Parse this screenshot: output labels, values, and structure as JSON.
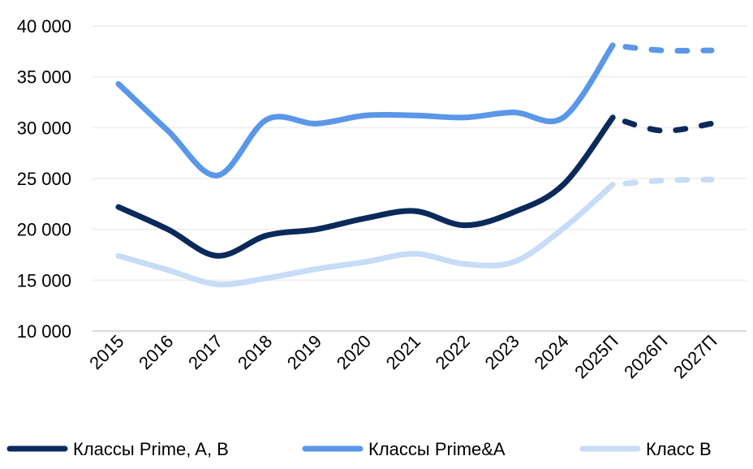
{
  "chart_data": {
    "type": "line",
    "title": "",
    "xlabel": "",
    "ylabel": "",
    "categories": [
      "2015",
      "2016",
      "2017",
      "2018",
      "2019",
      "2020",
      "2021",
      "2022",
      "2023",
      "2024",
      "2025П",
      "2026П",
      "2027П"
    ],
    "ylim": [
      10000,
      40000
    ],
    "yticks": [
      10000,
      15000,
      20000,
      25000,
      30000,
      35000,
      40000
    ],
    "ytick_labels": [
      "10 000",
      "15 000",
      "20 000",
      "25 000",
      "30 000",
      "35 000",
      "40 000"
    ],
    "grid": true,
    "legend_position": "bottom",
    "forecast_from_index": 10,
    "forecast_style": "dashed",
    "series": [
      {
        "name": "Классы Prime, A, B",
        "color": "#0b2a5b",
        "values": [
          22200,
          20000,
          17400,
          19400,
          20000,
          21100,
          21800,
          20400,
          21700,
          24400,
          31000,
          29700,
          30400
        ]
      },
      {
        "name": "Классы Prime&A",
        "color": "#5b97e8",
        "values": [
          34300,
          29700,
          25300,
          30800,
          30400,
          31200,
          31200,
          31000,
          31500,
          31000,
          38100,
          37600,
          37600
        ]
      },
      {
        "name": "Класс B",
        "color": "#c7dcf6",
        "values": [
          17400,
          16000,
          14600,
          15200,
          16100,
          16800,
          17600,
          16600,
          16800,
          20100,
          24400,
          24800,
          24900
        ]
      }
    ]
  }
}
